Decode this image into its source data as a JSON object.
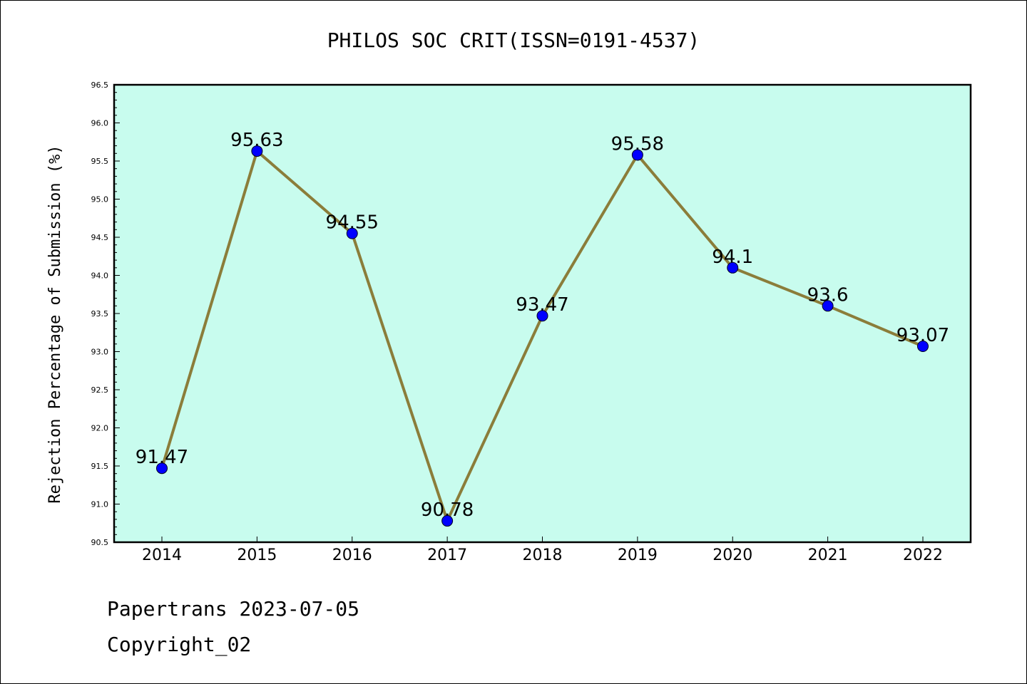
{
  "chart_data": {
    "type": "line",
    "title": "PHILOS SOC CRIT(ISSN=0191-4537)",
    "xlabel": "",
    "ylabel": "Rejection Percentage of Submission (%)",
    "categories": [
      "2014",
      "2015",
      "2016",
      "2017",
      "2018",
      "2019",
      "2020",
      "2021",
      "2022"
    ],
    "values": [
      91.47,
      95.63,
      94.55,
      90.78,
      93.47,
      95.58,
      94.1,
      93.6,
      93.07
    ],
    "data_labels": [
      "91.47",
      "95.63",
      "94.55",
      "90.78",
      "93.47",
      "95.58",
      "94.1",
      "93.6",
      "93.07"
    ],
    "ylim": [
      90.5,
      96.5
    ],
    "yticks": [
      "90.5",
      "91.0",
      "91.5",
      "92.0",
      "92.5",
      "93.0",
      "93.5",
      "94.0",
      "94.5",
      "95.0",
      "95.5",
      "96.0",
      "96.5"
    ],
    "grid": false,
    "plot_background": "#c8fcee",
    "line_color": "#8b7d3a",
    "marker_color": "#0000ff"
  },
  "footer": {
    "line1": "Papertrans 2023-07-05",
    "line2": "Copyright_02"
  }
}
